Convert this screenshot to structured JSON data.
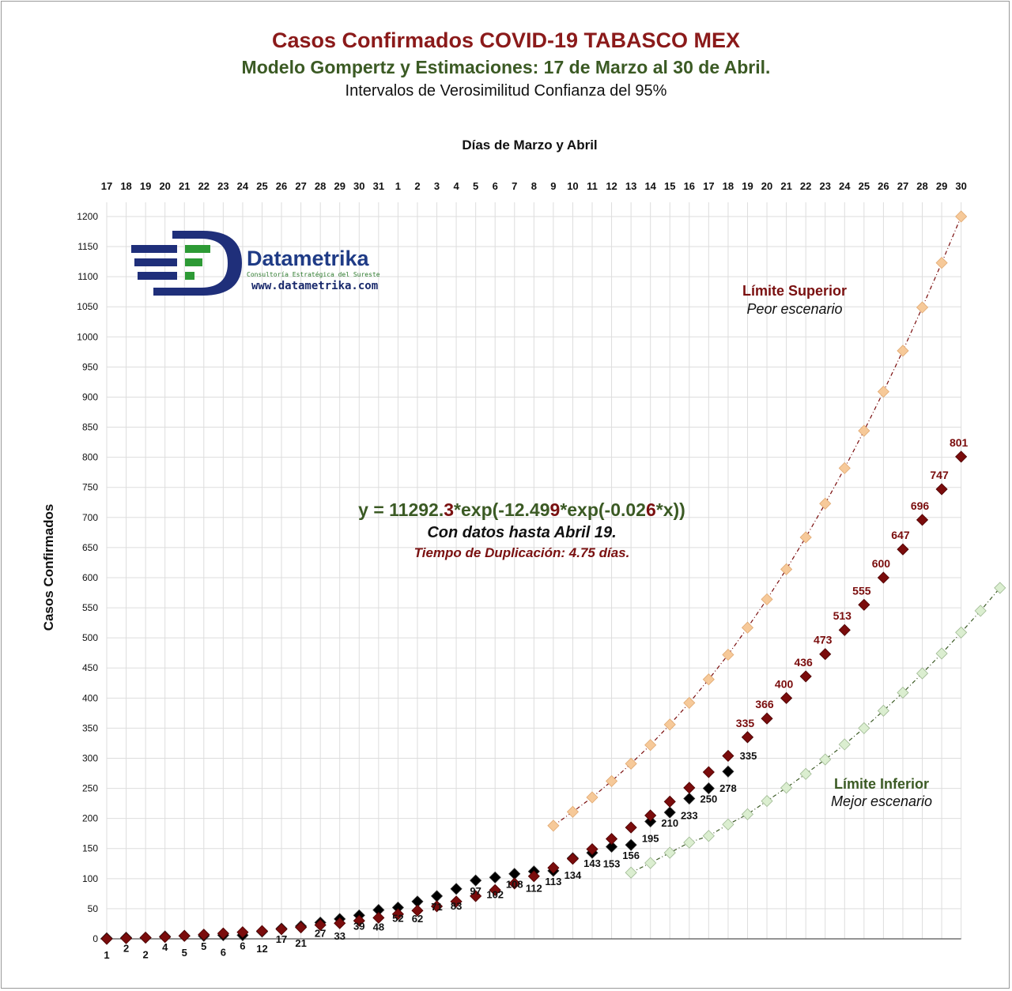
{
  "header": {
    "title": "Casos Confirmados COVID-19 TABASCO MEX",
    "subtitle": "Modelo Gompertz y Estimaciones: 17 de Marzo al 30 de Abril.",
    "note": "Intervalos de Verosimilitud Confianza del 95%"
  },
  "logo": {
    "name": "Datametrika",
    "tagline": "Consultoría Estratégica del Sureste",
    "url": "www.datametrika.com"
  },
  "equation": {
    "p1": "y = 11292.",
    "p2": "3",
    "p3": "*exp(-12.49",
    "p4": "9",
    "p5": "*exp(-0.02",
    "p6": "6",
    "p7": "*x))",
    "note1": "Con datos hasta Abril 19.",
    "note2": "Tiempo de Duplicación: 4.75 días."
  },
  "legend": {
    "upper_title": "Límite Superior",
    "upper_sub": "Peor escenario",
    "lower_title": "Límite Inferior",
    "lower_sub": "Mejor escenario"
  },
  "colors": {
    "observed": "#000000",
    "model": "#7a0c0c",
    "upper": "#f6c999",
    "lower": "#dbeed0",
    "grid": "#dddddd"
  },
  "chart_data": {
    "type": "scatter",
    "title": "Casos Confirmados COVID-19 TABASCO MEX",
    "xlabel": "Días de Marzo y Abril",
    "ylabel": "Casos Confirmados",
    "x": [
      "17",
      "18",
      "19",
      "20",
      "21",
      "22",
      "23",
      "24",
      "25",
      "26",
      "27",
      "28",
      "29",
      "30",
      "31",
      "1",
      "2",
      "3",
      "4",
      "5",
      "6",
      "7",
      "8",
      "9",
      "10",
      "11",
      "12",
      "13",
      "14",
      "15",
      "16",
      "17",
      "18",
      "19",
      "20",
      "21",
      "22",
      "23",
      "24",
      "25",
      "26",
      "27",
      "28",
      "29",
      "30"
    ],
    "ylim": [
      0,
      1200
    ],
    "yticks": [
      0,
      50,
      100,
      150,
      200,
      250,
      300,
      350,
      400,
      450,
      500,
      550,
      600,
      650,
      700,
      750,
      800,
      850,
      900,
      950,
      1000,
      1050,
      1100,
      1150,
      1200
    ],
    "grid": true,
    "series": [
      {
        "key": "observed",
        "values": [
          1,
          2,
          2,
          4,
          5,
          5,
          6,
          6,
          12,
          17,
          21,
          27,
          33,
          39,
          48,
          52,
          62,
          71,
          83,
          97,
          102,
          108,
          112,
          113,
          134,
          143,
          153,
          156,
          195,
          210,
          233,
          250,
          278,
          335
        ],
        "labels": [
          "1",
          "2",
          "2",
          "4",
          "5",
          "5",
          "6",
          "6",
          "12",
          "17",
          "21",
          "27",
          "33",
          "39",
          "48",
          "52",
          "62",
          "71",
          "83",
          "97",
          "102",
          "108",
          "112",
          "113",
          "134",
          "143",
          "153",
          "156",
          "195",
          "210",
          "233",
          "250",
          "278",
          "335"
        ]
      },
      {
        "key": "model",
        "values": [
          0,
          1,
          2,
          3,
          5,
          7,
          9,
          11,
          13,
          16,
          19,
          23,
          26,
          30,
          35,
          41,
          47,
          54,
          62,
          71,
          81,
          92,
          104,
          118,
          133,
          149,
          166,
          185,
          205,
          228,
          251,
          277,
          304,
          335,
          366,
          400,
          436,
          473,
          513,
          555,
          600,
          647,
          696,
          747,
          801
        ],
        "labels": [
          "335",
          "366",
          "400",
          "436",
          "473",
          "513",
          "555",
          "600",
          "647",
          "696",
          "747",
          "801"
        ]
      },
      {
        "key": "upper",
        "start": 23,
        "values": [
          188,
          211,
          235,
          262,
          291,
          322,
          356,
          392,
          431,
          472,
          517,
          564,
          614,
          667,
          723,
          782,
          844,
          909,
          977,
          1049,
          1123,
          1200
        ]
      },
      {
        "key": "lower",
        "start": 27,
        "values": [
          110,
          126,
          143,
          160,
          171,
          190,
          207,
          229,
          251,
          274,
          298,
          323,
          350,
          379,
          409,
          441,
          474,
          509,
          545,
          583
        ]
      }
    ]
  }
}
